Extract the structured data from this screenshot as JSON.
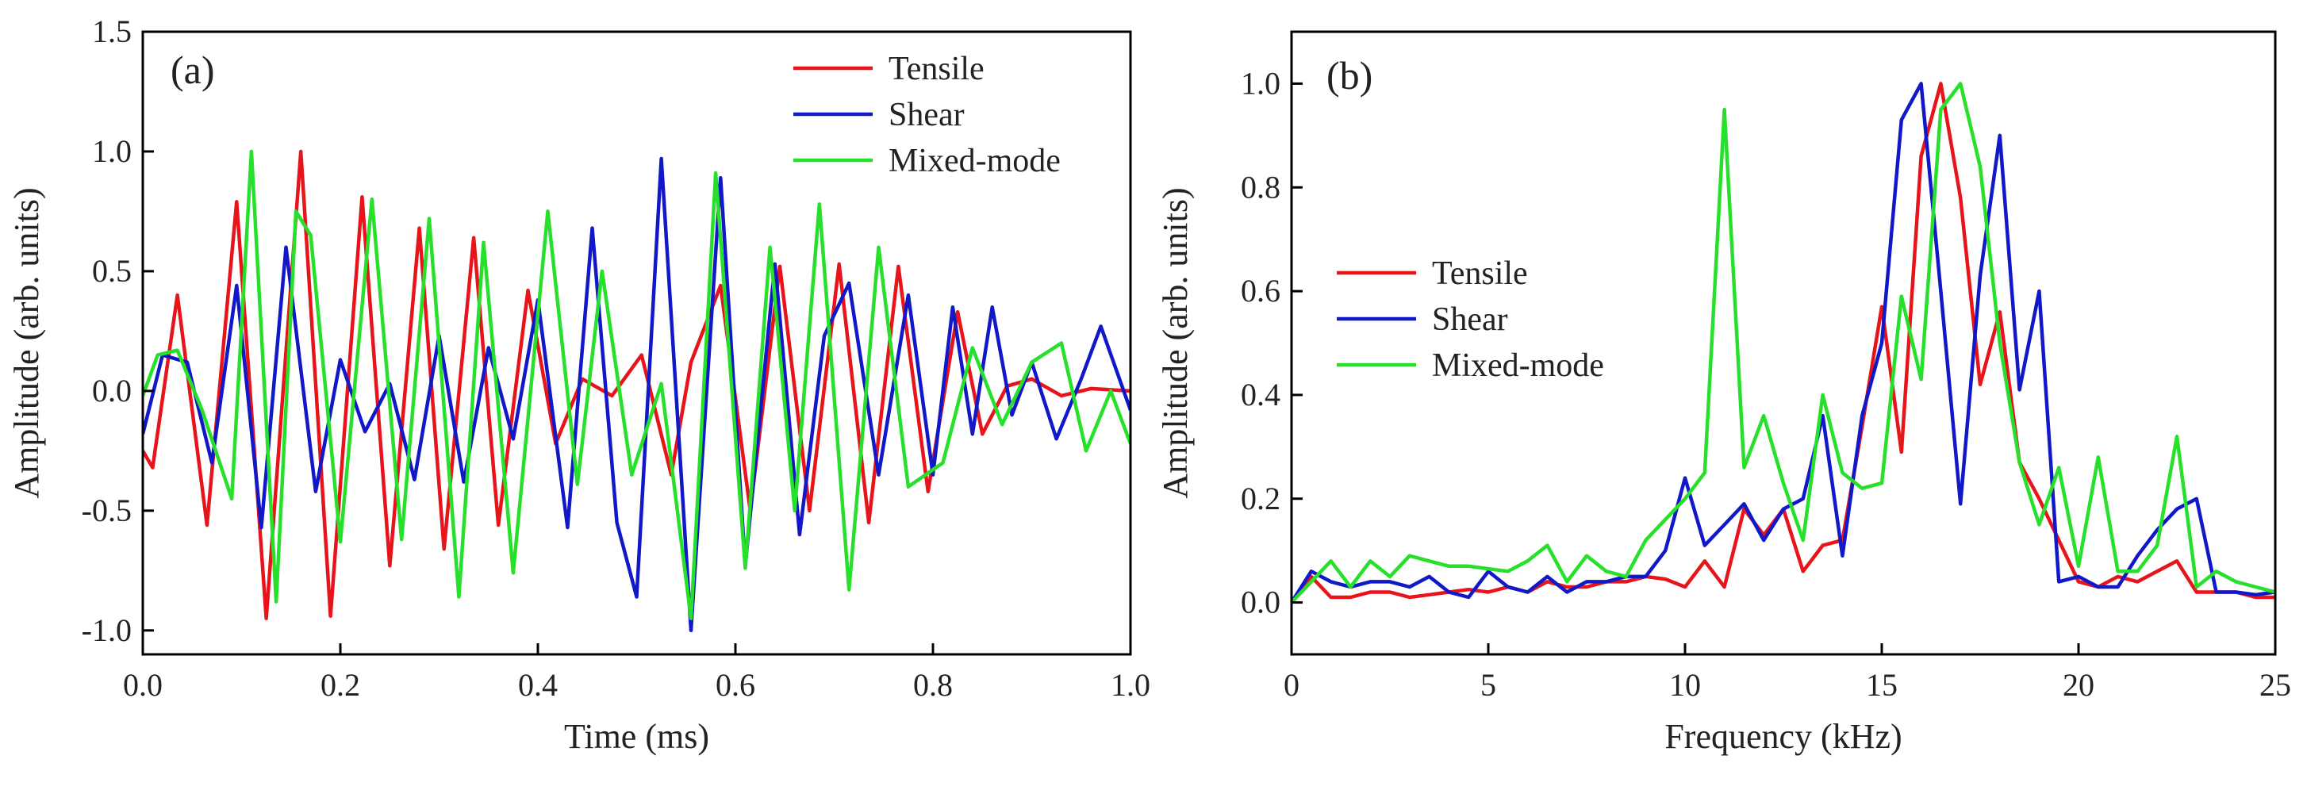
{
  "chart_data": [
    {
      "type": "line",
      "panel_label": "(a)",
      "xlabel": "Time (ms)",
      "ylabel": "Amplitude (arb. units)",
      "xlim": [
        0.0,
        1.0
      ],
      "ylim": [
        -1.1,
        1.5
      ],
      "xticks": [
        0.0,
        0.2,
        0.4,
        0.6,
        0.8,
        1.0
      ],
      "xtick_labels": [
        "0.0",
        "0.2",
        "0.4",
        "0.6",
        "0.8",
        "1.0"
      ],
      "yticks": [
        -1.0,
        -0.5,
        0.0,
        0.5,
        1.0,
        1.5
      ],
      "ytick_labels": [
        "-1.0",
        "-0.5",
        "0.0",
        "0.5",
        "1.0",
        "1.5"
      ],
      "legend": "top-right",
      "series": [
        {
          "name": "Tensile",
          "color": "#e8141b",
          "x": [
            0.0,
            0.01,
            0.035,
            0.065,
            0.095,
            0.125,
            0.16,
            0.19,
            0.222,
            0.25,
            0.28,
            0.305,
            0.335,
            0.36,
            0.39,
            0.418,
            0.445,
            0.475,
            0.505,
            0.535,
            0.555,
            0.585,
            0.615,
            0.645,
            0.675,
            0.705,
            0.735,
            0.765,
            0.795,
            0.825,
            0.85,
            0.875,
            0.9,
            0.93,
            0.96,
            1.0
          ],
          "y": [
            -0.25,
            -0.32,
            0.4,
            -0.56,
            0.79,
            -0.95,
            1.0,
            -0.94,
            0.81,
            -0.73,
            0.68,
            -0.66,
            0.64,
            -0.56,
            0.42,
            -0.22,
            0.05,
            -0.02,
            0.15,
            -0.35,
            0.12,
            0.44,
            -0.5,
            0.52,
            -0.5,
            0.53,
            -0.55,
            0.52,
            -0.42,
            0.33,
            -0.18,
            0.02,
            0.05,
            -0.02,
            0.01,
            0.0
          ]
        },
        {
          "name": "Shear",
          "color": "#1018c8",
          "x": [
            0.0,
            0.02,
            0.045,
            0.07,
            0.095,
            0.12,
            0.145,
            0.175,
            0.2,
            0.225,
            0.25,
            0.275,
            0.3,
            0.325,
            0.35,
            0.375,
            0.4,
            0.43,
            0.455,
            0.48,
            0.5,
            0.525,
            0.555,
            0.585,
            0.61,
            0.64,
            0.665,
            0.69,
            0.715,
            0.745,
            0.775,
            0.8,
            0.82,
            0.84,
            0.86,
            0.88,
            0.9,
            0.925,
            0.95,
            0.97,
            1.0
          ],
          "y": [
            -0.18,
            0.15,
            0.12,
            -0.3,
            0.44,
            -0.57,
            0.6,
            -0.42,
            0.13,
            -0.17,
            0.03,
            -0.37,
            0.23,
            -0.38,
            0.18,
            -0.2,
            0.38,
            -0.57,
            0.68,
            -0.55,
            -0.86,
            0.97,
            -1.0,
            0.89,
            -0.73,
            0.53,
            -0.6,
            0.23,
            0.45,
            -0.35,
            0.4,
            -0.35,
            0.35,
            -0.18,
            0.35,
            -0.1,
            0.12,
            -0.2,
            0.05,
            0.27,
            -0.08
          ]
        },
        {
          "name": "Mixed-mode",
          "color": "#27e02b",
          "x": [
            0.0,
            0.015,
            0.035,
            0.06,
            0.09,
            0.11,
            0.135,
            0.155,
            0.17,
            0.2,
            0.232,
            0.262,
            0.29,
            0.32,
            0.345,
            0.375,
            0.41,
            0.44,
            0.465,
            0.495,
            0.525,
            0.555,
            0.58,
            0.61,
            0.635,
            0.66,
            0.685,
            0.715,
            0.745,
            0.775,
            0.81,
            0.84,
            0.87,
            0.9,
            0.93,
            0.955,
            0.98,
            1.0
          ],
          "y": [
            -0.02,
            0.15,
            0.17,
            -0.08,
            -0.45,
            1.0,
            -0.88,
            0.75,
            0.65,
            -0.63,
            0.8,
            -0.62,
            0.72,
            -0.86,
            0.62,
            -0.76,
            0.75,
            -0.39,
            0.5,
            -0.35,
            0.03,
            -0.95,
            0.91,
            -0.74,
            0.6,
            -0.5,
            0.78,
            -0.83,
            0.6,
            -0.4,
            -0.3,
            0.18,
            -0.14,
            0.12,
            0.2,
            -0.25,
            0.0,
            -0.22
          ]
        }
      ]
    },
    {
      "type": "line",
      "panel_label": "(b)",
      "xlabel": "Frequency (kHz)",
      "ylabel": "Amplitude (arb. units)",
      "xlim": [
        0,
        25
      ],
      "ylim": [
        -0.1,
        1.1
      ],
      "xticks": [
        0,
        5,
        10,
        15,
        20,
        25
      ],
      "xtick_labels": [
        "0",
        "5",
        "10",
        "15",
        "20",
        "25"
      ],
      "yticks": [
        0.0,
        0.2,
        0.4,
        0.6,
        0.8,
        1.0
      ],
      "ytick_labels": [
        "0.0",
        "0.2",
        "0.4",
        "0.6",
        "0.8",
        "1.0"
      ],
      "legend": "center-left",
      "series": [
        {
          "name": "Tensile",
          "color": "#e8141b",
          "x": [
            0,
            0.5,
            1,
            1.5,
            2,
            2.5,
            3,
            3.5,
            4,
            4.5,
            5,
            5.5,
            6,
            6.5,
            7,
            7.5,
            8,
            8.5,
            9,
            9.5,
            10,
            10.5,
            11,
            11.5,
            12,
            12.5,
            13,
            13.5,
            14,
            14.5,
            15,
            15.5,
            16,
            16.5,
            17,
            17.5,
            18,
            18.5,
            19,
            19.5,
            20,
            20.5,
            21,
            21.5,
            22,
            22.5,
            23,
            23.5,
            24,
            24.5,
            25
          ],
          "y": [
            0.0,
            0.05,
            0.01,
            0.01,
            0.02,
            0.02,
            0.01,
            0.015,
            0.02,
            0.025,
            0.02,
            0.03,
            0.02,
            0.04,
            0.03,
            0.03,
            0.04,
            0.04,
            0.05,
            0.045,
            0.03,
            0.08,
            0.03,
            0.18,
            0.13,
            0.18,
            0.06,
            0.11,
            0.12,
            0.34,
            0.57,
            0.29,
            0.86,
            1.0,
            0.78,
            0.42,
            0.56,
            0.27,
            0.2,
            0.12,
            0.04,
            0.03,
            0.05,
            0.04,
            0.06,
            0.08,
            0.02,
            0.02,
            0.02,
            0.01,
            0.01
          ]
        },
        {
          "name": "Shear",
          "color": "#1018c8",
          "x": [
            0,
            0.5,
            1,
            1.5,
            2,
            2.5,
            3,
            3.5,
            4,
            4.5,
            5,
            5.5,
            6,
            6.5,
            7,
            7.5,
            8,
            8.5,
            9,
            9.5,
            10,
            10.5,
            11,
            11.5,
            12,
            12.5,
            13,
            13.5,
            14,
            14.5,
            15,
            15.5,
            16,
            16.5,
            17,
            17.5,
            18,
            18.5,
            19,
            19.5,
            20,
            20.5,
            21,
            21.5,
            22,
            22.5,
            23,
            23.5,
            24,
            24.5,
            25
          ],
          "y": [
            0.0,
            0.06,
            0.04,
            0.03,
            0.04,
            0.04,
            0.03,
            0.05,
            0.02,
            0.01,
            0.06,
            0.03,
            0.02,
            0.05,
            0.02,
            0.04,
            0.04,
            0.05,
            0.05,
            0.1,
            0.24,
            0.11,
            0.15,
            0.19,
            0.12,
            0.18,
            0.2,
            0.36,
            0.09,
            0.36,
            0.5,
            0.93,
            1.0,
            0.6,
            0.19,
            0.63,
            0.9,
            0.41,
            0.6,
            0.04,
            0.05,
            0.03,
            0.03,
            0.09,
            0.14,
            0.18,
            0.2,
            0.02,
            0.02,
            0.015,
            0.02
          ]
        },
        {
          "name": "Mixed-mode",
          "color": "#27e02b",
          "x": [
            0,
            0.5,
            1,
            1.5,
            2,
            2.5,
            3,
            3.5,
            4,
            4.5,
            5,
            5.5,
            6,
            6.5,
            7,
            7.5,
            8,
            8.5,
            9,
            9.5,
            10,
            10.5,
            11,
            11.5,
            12,
            12.5,
            13,
            13.5,
            14,
            14.5,
            15,
            15.5,
            16,
            16.5,
            17,
            17.5,
            18,
            18.5,
            19,
            19.5,
            20,
            20.5,
            21,
            21.5,
            22,
            22.5,
            23,
            23.5,
            24,
            24.5,
            25
          ],
          "y": [
            0.0,
            0.04,
            0.08,
            0.03,
            0.08,
            0.05,
            0.09,
            0.08,
            0.07,
            0.07,
            0.065,
            0.06,
            0.08,
            0.11,
            0.04,
            0.09,
            0.06,
            0.05,
            0.12,
            0.16,
            0.2,
            0.25,
            0.95,
            0.26,
            0.36,
            0.23,
            0.12,
            0.4,
            0.25,
            0.22,
            0.23,
            0.59,
            0.43,
            0.95,
            1.0,
            0.84,
            0.5,
            0.27,
            0.15,
            0.26,
            0.07,
            0.28,
            0.06,
            0.06,
            0.11,
            0.32,
            0.03,
            0.06,
            0.04,
            0.03,
            0.02
          ]
        }
      ]
    }
  ]
}
